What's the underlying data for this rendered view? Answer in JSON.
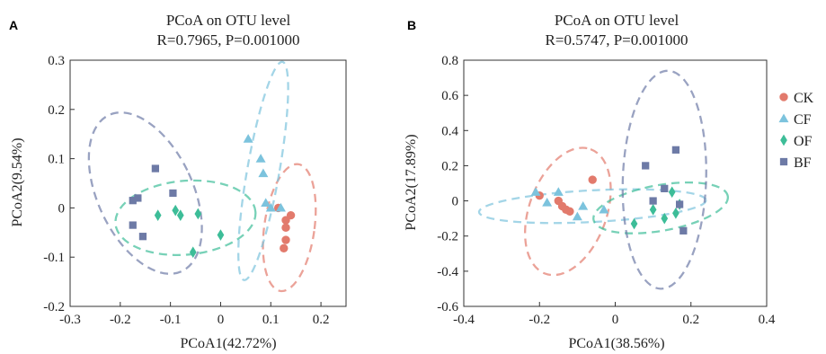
{
  "colors": {
    "CK": "#e27a6c",
    "CF": "#7cc3dd",
    "OF": "#3dbd98",
    "BF": "#6d7aa6"
  },
  "legend": [
    "CK",
    "CF",
    "OF",
    "BF"
  ],
  "chart_data": [
    {
      "type": "scatter",
      "panel": "A",
      "title": "PCoA on OTU level",
      "subtitle": "R=0.7965, P=0.001000",
      "xlabel": "PCoA1(42.72%)",
      "ylabel": "PCoA2(9.54%)",
      "xlim": [
        -0.3,
        0.25
      ],
      "ylim": [
        -0.2,
        0.3
      ],
      "xticks": [
        -0.3,
        -0.2,
        -0.1,
        0,
        0.1,
        0.2
      ],
      "xtick_labels": [
        "-0.3",
        "-0.2",
        "-0.1",
        "0",
        "0.1",
        "0.2"
      ],
      "yticks": [
        -0.2,
        -0.1,
        0,
        0.1,
        0.2,
        0.3
      ],
      "ytick_labels": [
        "-0.2",
        "-0.1",
        "0",
        "0.1",
        "0.2",
        "0.3"
      ],
      "series": [
        {
          "name": "CK",
          "marker": "circle",
          "points": [
            [
              0.115,
              0.0
            ],
            [
              0.14,
              -0.015
            ],
            [
              0.13,
              -0.025
            ],
            [
              0.13,
              -0.065
            ],
            [
              0.126,
              -0.082
            ],
            [
              0.13,
              -0.04
            ]
          ]
        },
        {
          "name": "CF",
          "marker": "triangle",
          "points": [
            [
              0.055,
              0.14
            ],
            [
              0.08,
              0.1
            ],
            [
              0.085,
              0.07
            ],
            [
              0.09,
              0.01
            ],
            [
              0.1,
              0.0
            ],
            [
              0.12,
              0.0
            ]
          ]
        },
        {
          "name": "OF",
          "marker": "diamond",
          "points": [
            [
              -0.125,
              -0.015
            ],
            [
              -0.09,
              -0.005
            ],
            [
              -0.08,
              -0.015
            ],
            [
              -0.045,
              -0.012
            ],
            [
              -0.055,
              -0.09
            ],
            [
              0.0,
              -0.055
            ]
          ]
        },
        {
          "name": "BF",
          "marker": "square",
          "points": [
            [
              -0.13,
              0.08
            ],
            [
              -0.175,
              0.015
            ],
            [
              -0.165,
              0.02
            ],
            [
              -0.095,
              0.03
            ],
            [
              -0.175,
              -0.035
            ],
            [
              -0.155,
              -0.058
            ]
          ]
        }
      ],
      "ellipses": [
        {
          "group": "CK",
          "cx": 0.137,
          "cy": -0.04,
          "rx": 0.05,
          "ry": 0.13,
          "angle_deg": 8
        },
        {
          "group": "CF",
          "cx": 0.085,
          "cy": 0.075,
          "rx": 0.032,
          "ry": 0.225,
          "angle_deg": 10
        },
        {
          "group": "OF",
          "cx": -0.07,
          "cy": -0.02,
          "rx": 0.14,
          "ry": 0.075,
          "angle_deg": -5
        },
        {
          "group": "BF",
          "cx": -0.15,
          "cy": 0.03,
          "rx": 0.095,
          "ry": 0.175,
          "angle_deg": -25
        }
      ]
    },
    {
      "type": "scatter",
      "panel": "B",
      "title": "PCoA on OTU level",
      "subtitle": "R=0.5747, P=0.001000",
      "xlabel": "PCoA1(38.56%)",
      "ylabel": "PCoA2(17.89%)",
      "xlim": [
        -0.4,
        0.4
      ],
      "ylim": [
        -0.6,
        0.8
      ],
      "xticks": [
        -0.4,
        -0.2,
        0,
        0.2,
        0.4
      ],
      "xtick_labels": [
        "-0.4",
        "-0.2",
        "0",
        "0.2",
        "0.4"
      ],
      "yticks": [
        -0.6,
        -0.4,
        -0.2,
        0,
        0.2,
        0.4,
        0.6,
        0.8
      ],
      "ytick_labels": [
        "-0.6",
        "-0.4",
        "-0.2",
        "0",
        "0.2",
        "0.4",
        "0.6",
        "0.8"
      ],
      "series": [
        {
          "name": "CK",
          "marker": "circle",
          "points": [
            [
              -0.2,
              0.03
            ],
            [
              -0.15,
              0.0
            ],
            [
              -0.14,
              -0.03
            ],
            [
              -0.12,
              -0.06
            ],
            [
              -0.13,
              -0.05
            ],
            [
              -0.06,
              0.12
            ]
          ]
        },
        {
          "name": "CF",
          "marker": "triangle",
          "points": [
            [
              -0.21,
              0.05
            ],
            [
              -0.18,
              -0.01
            ],
            [
              -0.15,
              0.05
            ],
            [
              -0.1,
              -0.09
            ],
            [
              -0.085,
              -0.03
            ],
            [
              -0.03,
              -0.05
            ]
          ]
        },
        {
          "name": "OF",
          "marker": "diamond",
          "points": [
            [
              0.05,
              -0.13
            ],
            [
              0.1,
              -0.05
            ],
            [
              0.13,
              -0.1
            ],
            [
              0.15,
              0.05
            ],
            [
              0.16,
              -0.07
            ],
            [
              0.17,
              -0.02
            ]
          ]
        },
        {
          "name": "BF",
          "marker": "square",
          "points": [
            [
              0.08,
              0.2
            ],
            [
              0.1,
              0.0
            ],
            [
              0.13,
              0.07
            ],
            [
              0.16,
              0.29
            ],
            [
              0.17,
              -0.02
            ],
            [
              0.18,
              -0.17
            ]
          ]
        }
      ],
      "ellipses": [
        {
          "group": "CK",
          "cx": -0.125,
          "cy": -0.06,
          "rx": 0.175,
          "ry": 0.22,
          "angle_deg": -70
        },
        {
          "group": "CF",
          "cx": -0.06,
          "cy": -0.03,
          "rx": 0.3,
          "ry": 0.09,
          "angle_deg": -3
        },
        {
          "group": "OF",
          "cx": 0.12,
          "cy": -0.04,
          "rx": 0.18,
          "ry": 0.13,
          "angle_deg": -10
        },
        {
          "group": "BF",
          "cx": 0.13,
          "cy": 0.12,
          "rx": 0.11,
          "ry": 0.62,
          "angle_deg": 2
        }
      ]
    }
  ]
}
